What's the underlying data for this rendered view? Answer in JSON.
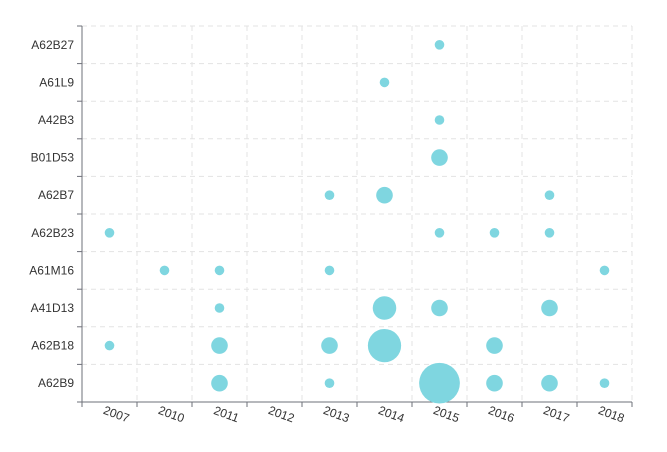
{
  "chart_data": {
    "type": "scatter",
    "title": "",
    "xlabel": "",
    "ylabel": "",
    "x_categories": [
      "2007",
      "2010",
      "2011",
      "2012",
      "2013",
      "2014",
      "2015",
      "2016",
      "2017",
      "2018"
    ],
    "y_categories": [
      "A62B9",
      "A62B18",
      "A41D13",
      "A61M16",
      "A62B23",
      "A62B7",
      "B01D53",
      "A42B3",
      "A61L9",
      "A62B27"
    ],
    "grid": true,
    "legend": "none",
    "color": "#7fd6e0",
    "points": [
      {
        "x": "2015",
        "y": "A62B27",
        "size": 1
      },
      {
        "x": "2014",
        "y": "A61L9",
        "size": 1
      },
      {
        "x": "2015",
        "y": "A42B3",
        "size": 1
      },
      {
        "x": "2015",
        "y": "B01D53",
        "size": 3
      },
      {
        "x": "2013",
        "y": "A62B7",
        "size": 1
      },
      {
        "x": "2014",
        "y": "A62B7",
        "size": 3
      },
      {
        "x": "2017",
        "y": "A62B7",
        "size": 1
      },
      {
        "x": "2007",
        "y": "A62B23",
        "size": 1
      },
      {
        "x": "2015",
        "y": "A62B23",
        "size": 1
      },
      {
        "x": "2016",
        "y": "A62B23",
        "size": 1
      },
      {
        "x": "2017",
        "y": "A62B23",
        "size": 1
      },
      {
        "x": "2010",
        "y": "A61M16",
        "size": 1
      },
      {
        "x": "2011",
        "y": "A61M16",
        "size": 1
      },
      {
        "x": "2013",
        "y": "A61M16",
        "size": 1
      },
      {
        "x": "2018",
        "y": "A61M16",
        "size": 1
      },
      {
        "x": "2011",
        "y": "A41D13",
        "size": 1
      },
      {
        "x": "2014",
        "y": "A41D13",
        "size": 6
      },
      {
        "x": "2015",
        "y": "A41D13",
        "size": 3
      },
      {
        "x": "2017",
        "y": "A41D13",
        "size": 3
      },
      {
        "x": "2007",
        "y": "A62B18",
        "size": 1
      },
      {
        "x": "2011",
        "y": "A62B18",
        "size": 3
      },
      {
        "x": "2013",
        "y": "A62B18",
        "size": 3
      },
      {
        "x": "2014",
        "y": "A62B18",
        "size": 12
      },
      {
        "x": "2016",
        "y": "A62B18",
        "size": 3
      },
      {
        "x": "2011",
        "y": "A62B9",
        "size": 3
      },
      {
        "x": "2013",
        "y": "A62B9",
        "size": 1
      },
      {
        "x": "2015",
        "y": "A62B9",
        "size": 18
      },
      {
        "x": "2016",
        "y": "A62B9",
        "size": 3
      },
      {
        "x": "2017",
        "y": "A62B9",
        "size": 3
      },
      {
        "x": "2018",
        "y": "A62B9",
        "size": 1
      }
    ]
  }
}
